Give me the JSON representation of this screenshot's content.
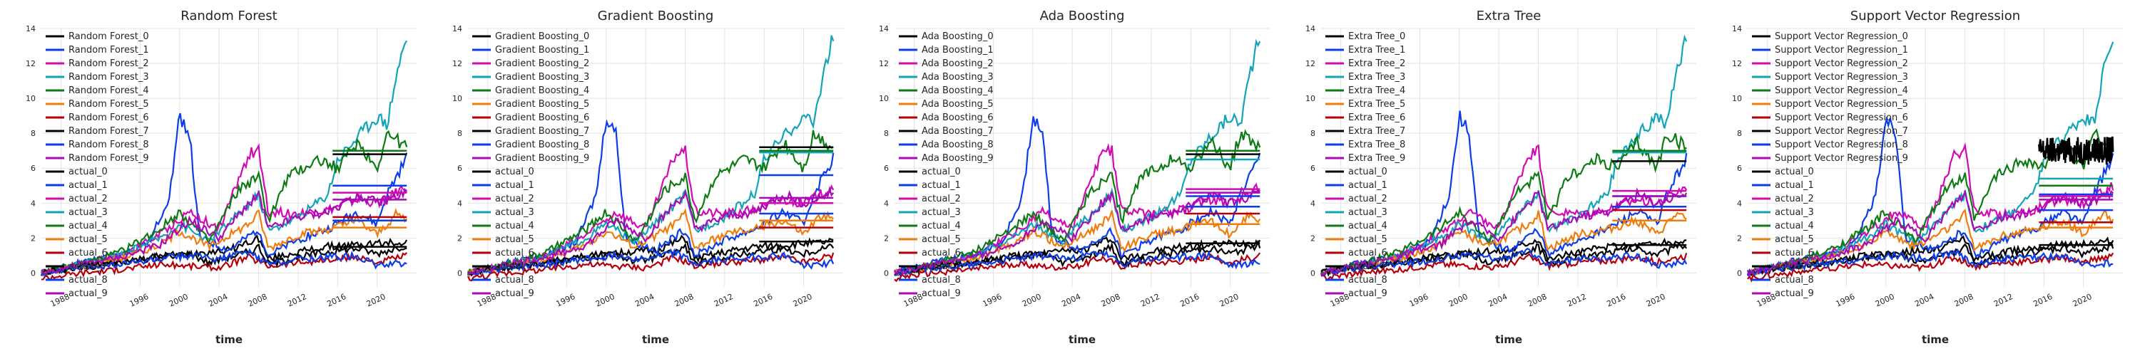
{
  "colors": [
    "#000000",
    "#0b3de8",
    "#d10ab4",
    "#12a5b5",
    "#0d7b13",
    "#ef7d0e",
    "#b5000a",
    "#000000",
    "#0b3de8",
    "#a90ab5"
  ],
  "chart_data": [
    {
      "type": "line",
      "title": "Random Forest",
      "xlabel": "time",
      "ylabel": "",
      "xlim": [
        1986,
        2024
      ],
      "ylim": [
        -0.8,
        14
      ],
      "xticks": [
        "1988",
        "1996",
        "2000",
        "2004",
        "2008",
        "2012",
        "2016",
        "2020"
      ],
      "yticks": [
        "0",
        "2",
        "4",
        "6",
        "8",
        "10",
        "12",
        "14"
      ],
      "grid": true,
      "legend_position": "upper-left",
      "legend": [
        "Random Forest_0",
        "Random Forest_1",
        "Random Forest_2",
        "Random Forest_3",
        "Random Forest_4",
        "Random Forest_5",
        "Random Forest_6",
        "Random Forest_7",
        "Random Forest_8",
        "Random Forest_9",
        "actual_0",
        "actual_1",
        "actual_2",
        "actual_3",
        "actual_4",
        "actual_5",
        "actual_6",
        "actual_7",
        "actual_8",
        "actual_9"
      ],
      "forecast_start": 2015.5,
      "forecast_values": [
        1.5,
        5.0,
        4.6,
        7.0,
        7.0,
        2.6,
        3.2,
        6.8,
        3.0,
        4.2
      ]
    },
    {
      "type": "line",
      "title": "Gradient Boosting",
      "xlabel": "time",
      "ylabel": "",
      "xlim": [
        1986,
        2024
      ],
      "ylim": [
        -0.8,
        14
      ],
      "xticks": [
        "1988",
        "1996",
        "2000",
        "2004",
        "2008",
        "2012",
        "2016",
        "2020"
      ],
      "yticks": [
        "0",
        "2",
        "4",
        "6",
        "8",
        "10",
        "12",
        "14"
      ],
      "grid": true,
      "legend_position": "upper-left",
      "legend": [
        "Gradient Boosting_0",
        "Gradient Boosting_1",
        "Gradient Boosting_2",
        "Gradient Boosting_3",
        "Gradient Boosting_4",
        "Gradient Boosting_5",
        "Gradient Boosting_6",
        "Gradient Boosting_7",
        "Gradient Boosting_8",
        "Gradient Boosting_9",
        "actual_0",
        "actual_1",
        "actual_2",
        "actual_3",
        "actual_4",
        "actual_5",
        "actual_6",
        "actual_7",
        "actual_8",
        "actual_9"
      ],
      "forecast_start": 2015.5,
      "forecast_values": [
        1.8,
        5.6,
        4.0,
        6.9,
        7.0,
        3.0,
        2.6,
        7.2,
        3.4,
        4.3
      ]
    },
    {
      "type": "line",
      "title": "Ada Boosting",
      "xlabel": "time",
      "ylabel": "",
      "xlim": [
        1986,
        2024
      ],
      "ylim": [
        -0.8,
        14
      ],
      "xticks": [
        "1988",
        "1996",
        "2000",
        "2004",
        "2008",
        "2012",
        "2016",
        "2020"
      ],
      "yticks": [
        "0",
        "2",
        "4",
        "6",
        "8",
        "10",
        "12",
        "14"
      ],
      "grid": true,
      "legend_position": "upper-left",
      "legend": [
        "Ada Boosting_0",
        "Ada Boosting_1",
        "Ada Boosting_2",
        "Ada Boosting_3",
        "Ada Boosting_4",
        "Ada Boosting_5",
        "Ada Boosting_6",
        "Ada Boosting_7",
        "Ada Boosting_8",
        "Ada Boosting_9",
        "actual_0",
        "actual_1",
        "actual_2",
        "actual_3",
        "actual_4",
        "actual_5",
        "actual_6",
        "actual_7",
        "actual_8",
        "actual_9"
      ],
      "forecast_start": 2015.5,
      "forecast_values": [
        1.7,
        4.4,
        4.8,
        6.5,
        7.0,
        2.8,
        3.4,
        6.8,
        3.8,
        4.6
      ]
    },
    {
      "type": "line",
      "title": "Extra Tree",
      "xlabel": "time",
      "ylabel": "",
      "xlim": [
        1986,
        2024
      ],
      "ylim": [
        -0.8,
        14
      ],
      "xticks": [
        "1988",
        "1996",
        "2000",
        "2004",
        "2008",
        "2012",
        "2016",
        "2020"
      ],
      "yticks": [
        "0",
        "2",
        "4",
        "6",
        "8",
        "10",
        "12",
        "14"
      ],
      "grid": true,
      "legend_position": "upper-left",
      "legend": [
        "Extra Tree_0",
        "Extra Tree_1",
        "Extra Tree_2",
        "Extra Tree_3",
        "Extra Tree_4",
        "Extra Tree_5",
        "Extra Tree_6",
        "Extra Tree_7",
        "Extra Tree_8",
        "Extra Tree_9",
        "actual_0",
        "actual_1",
        "actual_2",
        "actual_3",
        "actual_4",
        "actual_5",
        "actual_6",
        "actual_7",
        "actual_8",
        "actual_9"
      ],
      "forecast_start": 2015.5,
      "forecast_values": [
        1.6,
        4.4,
        4.7,
        6.9,
        7.0,
        3.0,
        3.6,
        6.4,
        3.8,
        4.4
      ]
    },
    {
      "type": "line",
      "title": "Support Vector Regression",
      "xlabel": "time",
      "ylabel": "",
      "xlim": [
        1986,
        2024
      ],
      "ylim": [
        -0.8,
        14
      ],
      "xticks": [
        "1988",
        "1996",
        "2000",
        "2004",
        "2008",
        "2012",
        "2016",
        "2020"
      ],
      "yticks": [
        "0",
        "2",
        "4",
        "6",
        "8",
        "10",
        "12",
        "14"
      ],
      "grid": true,
      "legend_position": "upper-left",
      "legend": [
        "Support Vector Regression_0",
        "Support Vector Regression_1",
        "Support Vector Regression_2",
        "Support Vector Regression_3",
        "Support Vector Regression_4",
        "Support Vector Regression_5",
        "Support Vector Regression_6",
        "Support Vector Regression_7",
        "Support Vector Regression_8",
        "Support Vector Regression_9",
        "actual_0",
        "actual_1",
        "actual_2",
        "actual_3",
        "actual_4",
        "actual_5",
        "actual_6",
        "actual_7",
        "actual_8",
        "actual_9"
      ],
      "forecast_start": 2015.5,
      "forecast_values": [
        1.6,
        4.5,
        4.4,
        5.4,
        5.0,
        2.6,
        2.9,
        7.0,
        3.6,
        4.2
      ]
    }
  ],
  "actual_series": [
    {
      "x": [
        1986,
        1990,
        1994,
        1998,
        2000,
        2002,
        2005,
        2008,
        2009,
        2012,
        2015,
        2018,
        2020,
        2021,
        2023
      ],
      "y": [
        0.0,
        0.3,
        0.6,
        0.9,
        1.0,
        1.2,
        1.3,
        2.0,
        0.8,
        1.2,
        1.5,
        1.6,
        1.7,
        1.7,
        1.8
      ]
    },
    {
      "x": [
        1986,
        1990,
        1994,
        1997,
        1999,
        2000,
        2001,
        2002,
        2005,
        2008,
        2009,
        2012,
        2015,
        2018,
        2020,
        2021,
        2023
      ],
      "y": [
        0.0,
        0.6,
        1.0,
        1.8,
        4.5,
        9.0,
        8.0,
        2.0,
        1.3,
        2.5,
        1.0,
        1.9,
        2.5,
        3.5,
        2.8,
        4.5,
        6.6
      ]
    },
    {
      "x": [
        1986,
        1990,
        1994,
        1998,
        2001,
        2004,
        2007,
        2008,
        2009,
        2012,
        2015,
        2018,
        2020,
        2022,
        2023
      ],
      "y": [
        0.0,
        0.5,
        1.0,
        2.2,
        3.5,
        2.5,
        6.8,
        7.0,
        3.5,
        3.4,
        3.6,
        4.2,
        4.0,
        4.6,
        5.0
      ]
    },
    {
      "x": [
        1986,
        1990,
        1994,
        1998,
        2000,
        2003,
        2006,
        2008,
        2009,
        2012,
        2015,
        2016,
        2018,
        2020,
        2021,
        2022,
        2023
      ],
      "y": [
        0.0,
        0.5,
        1.0,
        2.0,
        2.8,
        1.8,
        3.4,
        4.5,
        2.4,
        3.2,
        4.5,
        6.5,
        7.8,
        9.0,
        8.5,
        11.5,
        13.5
      ]
    },
    {
      "x": [
        1986,
        1990,
        1994,
        1998,
        2000,
        2003,
        2006,
        2008,
        2009,
        2011,
        2014,
        2016,
        2018,
        2020,
        2021,
        2023
      ],
      "y": [
        0.0,
        0.5,
        1.2,
        2.5,
        3.5,
        1.8,
        4.8,
        5.5,
        3.0,
        5.5,
        6.5,
        6.0,
        7.5,
        6.0,
        8.0,
        7.2
      ]
    },
    {
      "x": [
        1986,
        1990,
        1994,
        1998,
        2000,
        2003,
        2007,
        2008,
        2009,
        2012,
        2015,
        2018,
        2020,
        2022,
        2023
      ],
      "y": [
        0.0,
        0.4,
        0.8,
        1.6,
        2.4,
        1.5,
        2.8,
        3.4,
        1.4,
        2.2,
        2.5,
        3.0,
        2.2,
        3.4,
        3.0
      ]
    },
    {
      "x": [
        1986,
        1990,
        1994,
        1998,
        2001,
        2004,
        2007,
        2009,
        2012,
        2015,
        2018,
        2020,
        2023
      ],
      "y": [
        -0.3,
        0.0,
        0.2,
        0.5,
        0.4,
        0.3,
        0.9,
        0.4,
        0.6,
        0.7,
        0.9,
        0.6,
        1.0
      ]
    },
    {
      "x": [
        1986,
        1990,
        1994,
        1998,
        2001,
        2003,
        2007,
        2008,
        2009,
        2012,
        2015,
        2018,
        2020,
        2023
      ],
      "y": [
        0.0,
        0.4,
        0.6,
        1.0,
        1.1,
        0.6,
        1.2,
        1.5,
        0.5,
        0.9,
        1.2,
        1.4,
        1.1,
        1.6
      ]
    },
    {
      "x": [
        1986,
        1990,
        1994,
        1998,
        2001,
        2004,
        2007,
        2009,
        2012,
        2015,
        2018,
        2020,
        2023
      ],
      "y": [
        0.0,
        0.3,
        0.5,
        0.8,
        1.0,
        0.8,
        1.2,
        0.5,
        0.8,
        0.9,
        1.0,
        0.4,
        0.6
      ]
    },
    {
      "x": [
        1986,
        1990,
        1994,
        1998,
        2001,
        2004,
        2007,
        2008,
        2009,
        2012,
        2015,
        2018,
        2020,
        2023
      ],
      "y": [
        0.0,
        0.5,
        0.9,
        1.6,
        3.0,
        2.0,
        4.0,
        4.5,
        2.5,
        3.2,
        3.5,
        4.5,
        4.0,
        4.6
      ]
    }
  ]
}
